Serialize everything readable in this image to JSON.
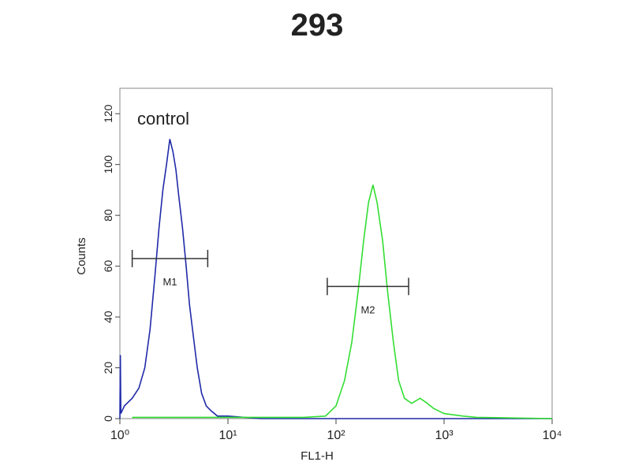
{
  "chart_data": {
    "type": "line",
    "title": "293",
    "x_label": "FL1-H",
    "y_label": "Counts",
    "log_x": true,
    "xlim": [
      1,
      10000
    ],
    "xticks": [
      {
        "value": 1,
        "label": "10⁰"
      },
      {
        "value": 10,
        "label": "10¹"
      },
      {
        "value": 100,
        "label": "10²"
      },
      {
        "value": 1000,
        "label": "10³"
      },
      {
        "value": 10000,
        "label": "10⁴"
      }
    ],
    "ylim": [
      0,
      130
    ],
    "yticks": [
      0,
      20,
      40,
      60,
      80,
      100,
      120
    ],
    "series": [
      {
        "name": "control",
        "color": "#1f2aa8",
        "x": [
          1.0,
          1.01,
          1.02,
          1.1,
          1.3,
          1.5,
          1.7,
          1.9,
          2.1,
          2.3,
          2.5,
          2.7,
          2.9,
          3.1,
          3.3,
          3.5,
          3.8,
          4.1,
          4.4,
          4.8,
          5.2,
          5.7,
          6.3,
          7,
          8,
          10,
          20,
          100,
          1000,
          10000
        ],
        "values": [
          0,
          25,
          2,
          5,
          8,
          12,
          20,
          35,
          55,
          75,
          90,
          100,
          110,
          105,
          98,
          88,
          75,
          60,
          45,
          32,
          20,
          10,
          5,
          3,
          1,
          1,
          0,
          0,
          0,
          0
        ]
      },
      {
        "color": "#33dd33",
        "x": [
          1.3,
          10,
          50,
          80,
          100,
          120,
          140,
          160,
          180,
          200,
          220,
          240,
          270,
          300,
          340,
          380,
          430,
          500,
          600,
          700,
          800,
          1000,
          1500,
          2000,
          10000
        ],
        "values": [
          0.5,
          0.5,
          0.5,
          1,
          5,
          15,
          30,
          50,
          70,
          85,
          92,
          85,
          70,
          50,
          30,
          15,
          8,
          6,
          8,
          6,
          4,
          2,
          1,
          0.5,
          0
        ]
      }
    ],
    "gates": [
      {
        "label": "M1",
        "x": [
          1.3,
          6.5
        ],
        "y": 63
      },
      {
        "label": "M2",
        "x": [
          83,
          470
        ],
        "y": 52
      }
    ]
  }
}
